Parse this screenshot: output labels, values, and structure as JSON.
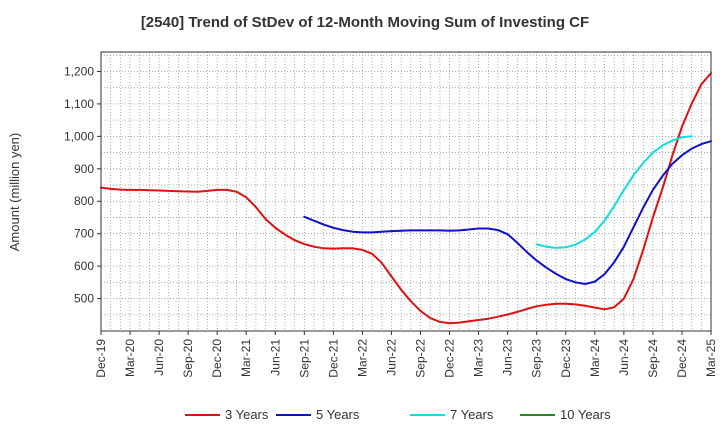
{
  "chart_data": {
    "type": "line",
    "title": "[2540]  Trend of StDev of 12-Month Moving Sum of Investing CF",
    "ylabel": "Amount (million yen)",
    "xlabel": "",
    "ylim": [
      400,
      1260
    ],
    "yticks": [
      500,
      600,
      700,
      800,
      900,
      1000,
      1100,
      1200
    ],
    "ytick_labels": [
      "500",
      "600",
      "700",
      "800",
      "900",
      "1,000",
      "1,100",
      "1,200"
    ],
    "xlim": [
      "2019-12",
      "2025-03"
    ],
    "xticks": [
      "2019-12",
      "2020-03",
      "2020-06",
      "2020-09",
      "2020-12",
      "2021-03",
      "2021-06",
      "2021-09",
      "2021-12",
      "2022-03",
      "2022-06",
      "2022-09",
      "2022-12",
      "2023-03",
      "2023-06",
      "2023-09",
      "2023-12",
      "2024-03",
      "2024-06",
      "2024-09",
      "2024-12",
      "2025-03"
    ],
    "xtick_labels": [
      "Dec-19",
      "Mar-20",
      "Jun-20",
      "Sep-20",
      "Dec-20",
      "Mar-21",
      "Jun-21",
      "Sep-21",
      "Dec-21",
      "Mar-22",
      "Jun-22",
      "Sep-22",
      "Dec-22",
      "Mar-23",
      "Jun-23",
      "Sep-23",
      "Dec-23",
      "Mar-24",
      "Jun-24",
      "Sep-24",
      "Dec-24",
      "Mar-25"
    ],
    "grid": true,
    "legend_position": "bottom",
    "series": [
      {
        "name": "3 Years",
        "color": "#dd1111",
        "points": [
          [
            "2019-12",
            842
          ],
          [
            "2020-01",
            838
          ],
          [
            "2020-02",
            836
          ],
          [
            "2020-03",
            835
          ],
          [
            "2020-04",
            835
          ],
          [
            "2020-05",
            834
          ],
          [
            "2020-06",
            833
          ],
          [
            "2020-07",
            832
          ],
          [
            "2020-08",
            831
          ],
          [
            "2020-09",
            830
          ],
          [
            "2020-10",
            829
          ],
          [
            "2020-11",
            832
          ],
          [
            "2020-12",
            835
          ],
          [
            "2021-01",
            835
          ],
          [
            "2021-02",
            829
          ],
          [
            "2021-03",
            812
          ],
          [
            "2021-04",
            782
          ],
          [
            "2021-05",
            745
          ],
          [
            "2021-06",
            718
          ],
          [
            "2021-07",
            697
          ],
          [
            "2021-08",
            680
          ],
          [
            "2021-09",
            668
          ],
          [
            "2021-10",
            660
          ],
          [
            "2021-11",
            655
          ],
          [
            "2021-12",
            654
          ],
          [
            "2022-01",
            655
          ],
          [
            "2022-02",
            655
          ],
          [
            "2022-03",
            650
          ],
          [
            "2022-04",
            638
          ],
          [
            "2022-05",
            610
          ],
          [
            "2022-06",
            568
          ],
          [
            "2022-07",
            527
          ],
          [
            "2022-08",
            492
          ],
          [
            "2022-09",
            462
          ],
          [
            "2022-10",
            440
          ],
          [
            "2022-11",
            428
          ],
          [
            "2022-12",
            424
          ],
          [
            "2023-01",
            426
          ],
          [
            "2023-02",
            430
          ],
          [
            "2023-03",
            434
          ],
          [
            "2023-04",
            438
          ],
          [
            "2023-05",
            444
          ],
          [
            "2023-06",
            451
          ],
          [
            "2023-07",
            459
          ],
          [
            "2023-08",
            468
          ],
          [
            "2023-09",
            476
          ],
          [
            "2023-10",
            481
          ],
          [
            "2023-11",
            484
          ],
          [
            "2023-12",
            484
          ],
          [
            "2024-01",
            482
          ],
          [
            "2024-02",
            478
          ],
          [
            "2024-03",
            472
          ],
          [
            "2024-04",
            467
          ],
          [
            "2024-05",
            473
          ],
          [
            "2024-06",
            500
          ],
          [
            "2024-07",
            560
          ],
          [
            "2024-08",
            650
          ],
          [
            "2024-09",
            750
          ],
          [
            "2024-10",
            840
          ],
          [
            "2024-11",
            940
          ],
          [
            "2024-12",
            1030
          ],
          [
            "2025-01",
            1100
          ],
          [
            "2025-02",
            1160
          ],
          [
            "2025-03",
            1195
          ]
        ]
      },
      {
        "name": "5 Years",
        "color": "#1111cc",
        "points": [
          [
            "2021-09",
            752
          ],
          [
            "2021-10",
            740
          ],
          [
            "2021-11",
            728
          ],
          [
            "2021-12",
            718
          ],
          [
            "2022-01",
            711
          ],
          [
            "2022-02",
            706
          ],
          [
            "2022-03",
            704
          ],
          [
            "2022-04",
            704
          ],
          [
            "2022-05",
            706
          ],
          [
            "2022-06",
            708
          ],
          [
            "2022-07",
            709
          ],
          [
            "2022-08",
            710
          ],
          [
            "2022-09",
            710
          ],
          [
            "2022-10",
            710
          ],
          [
            "2022-11",
            710
          ],
          [
            "2022-12",
            709
          ],
          [
            "2023-01",
            710
          ],
          [
            "2023-02",
            713
          ],
          [
            "2023-03",
            716
          ],
          [
            "2023-04",
            716
          ],
          [
            "2023-05",
            711
          ],
          [
            "2023-06",
            698
          ],
          [
            "2023-07",
            672
          ],
          [
            "2023-08",
            643
          ],
          [
            "2023-09",
            617
          ],
          [
            "2023-10",
            595
          ],
          [
            "2023-11",
            576
          ],
          [
            "2023-12",
            560
          ],
          [
            "2024-01",
            550
          ],
          [
            "2024-02",
            545
          ],
          [
            "2024-03",
            552
          ],
          [
            "2024-04",
            575
          ],
          [
            "2024-05",
            612
          ],
          [
            "2024-06",
            660
          ],
          [
            "2024-07",
            720
          ],
          [
            "2024-08",
            780
          ],
          [
            "2024-09",
            835
          ],
          [
            "2024-10",
            878
          ],
          [
            "2024-11",
            915
          ],
          [
            "2024-12",
            942
          ],
          [
            "2025-01",
            962
          ],
          [
            "2025-02",
            976
          ],
          [
            "2025-03",
            985
          ]
        ]
      },
      {
        "name": "7 Years",
        "color": "#11dddd",
        "points": [
          [
            "2023-09",
            667
          ],
          [
            "2023-10",
            660
          ],
          [
            "2023-11",
            656
          ],
          [
            "2023-12",
            658
          ],
          [
            "2024-01",
            666
          ],
          [
            "2024-02",
            682
          ],
          [
            "2024-03",
            705
          ],
          [
            "2024-04",
            740
          ],
          [
            "2024-05",
            785
          ],
          [
            "2024-06",
            835
          ],
          [
            "2024-07",
            880
          ],
          [
            "2024-08",
            918
          ],
          [
            "2024-09",
            950
          ],
          [
            "2024-10",
            972
          ],
          [
            "2024-11",
            987
          ],
          [
            "2024-12",
            997
          ],
          [
            "2025-01",
            1000
          ]
        ]
      },
      {
        "name": "10 Years",
        "color": "#228822",
        "points": []
      }
    ]
  }
}
